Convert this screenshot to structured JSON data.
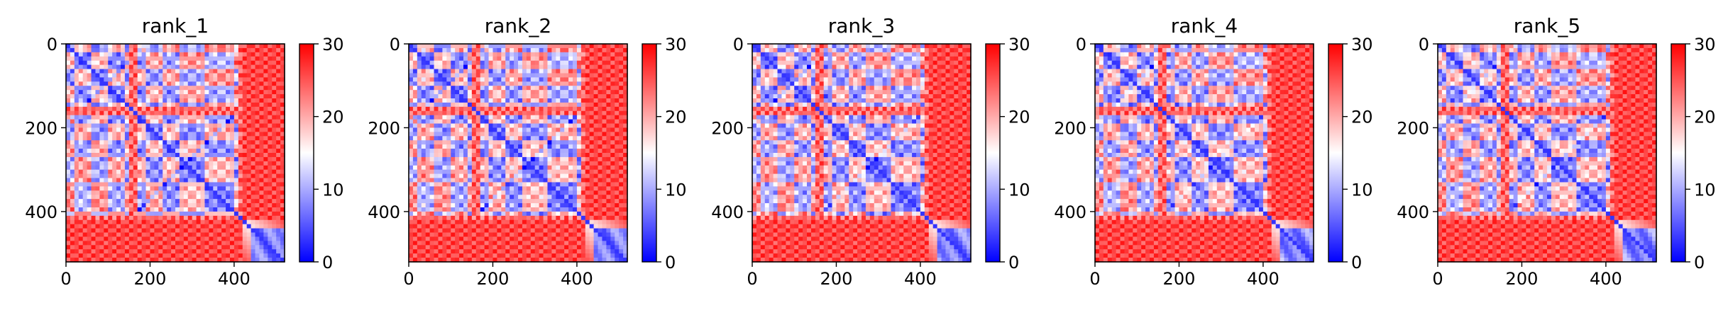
{
  "chart_data": [
    {
      "type": "heatmap",
      "title": "rank_1",
      "xlim": [
        0,
        520
      ],
      "ylim": [
        520,
        0
      ],
      "x_ticks": [
        0,
        200,
        400
      ],
      "y_ticks": [
        0,
        200,
        400
      ],
      "colorbar": {
        "min": 0,
        "max": 30,
        "ticks": [
          0,
          10,
          20,
          30
        ],
        "colormap": [
          "#0000ff",
          "#ffffff",
          "#ff0000"
        ]
      }
    },
    {
      "type": "heatmap",
      "title": "rank_2",
      "xlim": [
        0,
        520
      ],
      "ylim": [
        520,
        0
      ],
      "x_ticks": [
        0,
        200,
        400
      ],
      "y_ticks": [
        0,
        200,
        400
      ],
      "colorbar": {
        "min": 0,
        "max": 30,
        "ticks": [
          0,
          10,
          20,
          30
        ],
        "colormap": [
          "#0000ff",
          "#ffffff",
          "#ff0000"
        ]
      }
    },
    {
      "type": "heatmap",
      "title": "rank_3",
      "xlim": [
        0,
        520
      ],
      "ylim": [
        520,
        0
      ],
      "x_ticks": [
        0,
        200,
        400
      ],
      "y_ticks": [
        0,
        200,
        400
      ],
      "colorbar": {
        "min": 0,
        "max": 30,
        "ticks": [
          0,
          10,
          20,
          30
        ],
        "colormap": [
          "#0000ff",
          "#ffffff",
          "#ff0000"
        ]
      }
    },
    {
      "type": "heatmap",
      "title": "rank_4",
      "xlim": [
        0,
        520
      ],
      "ylim": [
        520,
        0
      ],
      "x_ticks": [
        0,
        200,
        400
      ],
      "y_ticks": [
        0,
        200,
        400
      ],
      "colorbar": {
        "min": 0,
        "max": 30,
        "ticks": [
          0,
          10,
          20,
          30
        ],
        "colormap": [
          "#0000ff",
          "#ffffff",
          "#ff0000"
        ]
      }
    },
    {
      "type": "heatmap",
      "title": "rank_5",
      "xlim": [
        0,
        520
      ],
      "ylim": [
        520,
        0
      ],
      "x_ticks": [
        0,
        200,
        400
      ],
      "y_ticks": [
        0,
        200,
        400
      ],
      "colorbar": {
        "min": 0,
        "max": 30,
        "ticks": [
          0,
          10,
          20,
          30
        ],
        "colormap": [
          "#0000ff",
          "#ffffff",
          "#ff0000"
        ]
      }
    }
  ]
}
